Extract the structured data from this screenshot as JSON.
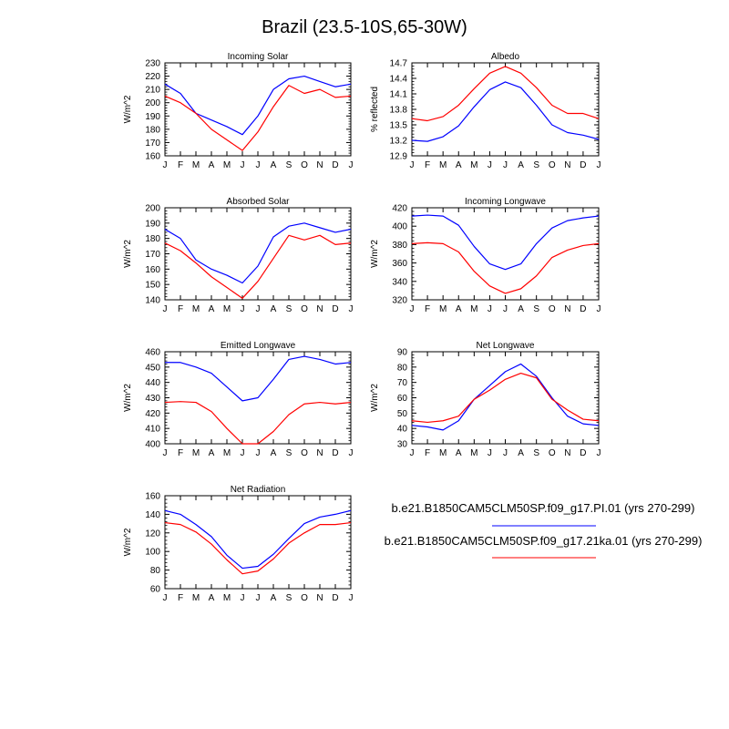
{
  "title": "Brazil (23.5-10S,65-30W)",
  "colors": {
    "series1": "#0000ff",
    "series2": "#ff0000",
    "axis": "#000000"
  },
  "legend": [
    {
      "label": "b.e21.B1850CAM5CLM50SP.f09_g17.PI.01 (yrs 270-299)",
      "color": "#0000ff"
    },
    {
      "label": "b.e21.B1850CAM5CLM50SP.f09_g17.21ka.01 (yrs 270-299)",
      "color": "#ff0000"
    }
  ],
  "chart_data": [
    {
      "type": "line",
      "title": "Incoming Solar",
      "ylabel": "W/m^2",
      "categories": [
        "J",
        "F",
        "M",
        "A",
        "M",
        "J",
        "J",
        "A",
        "S",
        "O",
        "N",
        "D",
        "J"
      ],
      "ylim": [
        160,
        230
      ],
      "yticks": [
        160,
        170,
        180,
        190,
        200,
        210,
        220,
        230
      ],
      "series": [
        {
          "color": "#0000ff",
          "values": [
            214,
            207,
            192,
            187,
            182,
            176,
            190,
            210,
            218,
            220,
            216,
            212,
            214
          ]
        },
        {
          "color": "#ff0000",
          "values": [
            205,
            200,
            192,
            180,
            172,
            164,
            178,
            197,
            213,
            207,
            210,
            204,
            205
          ]
        }
      ]
    },
    {
      "type": "line",
      "title": "Albedo",
      "ylabel": "% reflected",
      "categories": [
        "J",
        "F",
        "M",
        "A",
        "M",
        "J",
        "J",
        "A",
        "S",
        "O",
        "N",
        "D",
        "J"
      ],
      "ylim": [
        12.9,
        14.7
      ],
      "yticks": [
        "12.9",
        "13.2",
        "13.5",
        "13.8",
        "14.1",
        "14.4",
        "14.7"
      ],
      "series": [
        {
          "color": "#0000ff",
          "values": [
            13.2,
            13.18,
            13.27,
            13.48,
            13.85,
            14.18,
            14.33,
            14.22,
            13.88,
            13.5,
            13.35,
            13.3,
            13.22
          ]
        },
        {
          "color": "#ff0000",
          "values": [
            13.62,
            13.58,
            13.66,
            13.88,
            14.2,
            14.5,
            14.63,
            14.5,
            14.22,
            13.88,
            13.72,
            13.72,
            13.62
          ]
        }
      ]
    },
    {
      "type": "line",
      "title": "Absorbed Solar",
      "ylabel": "W/m^2",
      "categories": [
        "J",
        "F",
        "M",
        "A",
        "M",
        "J",
        "J",
        "A",
        "S",
        "O",
        "N",
        "D",
        "J"
      ],
      "ylim": [
        140,
        200
      ],
      "yticks": [
        140,
        150,
        160,
        170,
        180,
        190,
        200
      ],
      "series": [
        {
          "color": "#0000ff",
          "values": [
            186,
            180,
            166,
            160,
            156,
            151,
            162,
            181,
            188,
            190,
            187,
            184,
            186
          ]
        },
        {
          "color": "#ff0000",
          "values": [
            177,
            172,
            164,
            155,
            148,
            141,
            152,
            167,
            182,
            179,
            182,
            176,
            177
          ]
        }
      ]
    },
    {
      "type": "line",
      "title": "Incoming Longwave",
      "ylabel": "W/m^2",
      "categories": [
        "J",
        "F",
        "M",
        "A",
        "M",
        "J",
        "J",
        "A",
        "S",
        "O",
        "N",
        "D",
        "J"
      ],
      "ylim": [
        320,
        420
      ],
      "yticks": [
        320,
        340,
        360,
        380,
        400,
        420
      ],
      "series": [
        {
          "color": "#0000ff",
          "values": [
            411,
            412,
            411,
            401,
            378,
            359,
            353,
            359,
            381,
            398,
            406,
            409,
            411
          ]
        },
        {
          "color": "#ff0000",
          "values": [
            381,
            382,
            381,
            372,
            351,
            335,
            327,
            332,
            346,
            366,
            374,
            379,
            381
          ]
        }
      ]
    },
    {
      "type": "line",
      "title": "Emitted Longwave",
      "ylabel": "W/m^2",
      "categories": [
        "J",
        "F",
        "M",
        "A",
        "M",
        "J",
        "J",
        "A",
        "S",
        "O",
        "N",
        "D",
        "J"
      ],
      "ylim": [
        400,
        460
      ],
      "yticks": [
        400,
        410,
        420,
        430,
        440,
        450,
        460
      ],
      "series": [
        {
          "color": "#0000ff",
          "values": [
            453,
            453,
            450,
            446,
            437,
            428,
            430,
            442,
            455,
            457,
            455,
            452,
            453
          ]
        },
        {
          "color": "#ff0000",
          "values": [
            427,
            427.5,
            427,
            421,
            410,
            400,
            400,
            408,
            419,
            426,
            427,
            426,
            427
          ]
        }
      ]
    },
    {
      "type": "line",
      "title": "Net Longwave",
      "ylabel": "W/m^2",
      "categories": [
        "J",
        "F",
        "M",
        "A",
        "M",
        "J",
        "J",
        "A",
        "S",
        "O",
        "N",
        "D",
        "J"
      ],
      "ylim": [
        30,
        90
      ],
      "yticks": [
        30,
        40,
        50,
        60,
        70,
        80,
        90
      ],
      "series": [
        {
          "color": "#0000ff",
          "values": [
            42,
            41,
            39,
            45,
            59,
            68,
            77,
            82,
            74,
            60,
            48,
            43,
            42
          ]
        },
        {
          "color": "#ff0000",
          "values": [
            45,
            44,
            45,
            48,
            59,
            65,
            72,
            76,
            73,
            59,
            52,
            46,
            45
          ]
        }
      ]
    },
    {
      "type": "line",
      "title": "Net Radiation",
      "ylabel": "W/m^2",
      "categories": [
        "J",
        "F",
        "M",
        "A",
        "M",
        "J",
        "J",
        "A",
        "S",
        "O",
        "N",
        "D",
        "J"
      ],
      "ylim": [
        60,
        160
      ],
      "yticks": [
        60,
        80,
        100,
        120,
        140,
        160
      ],
      "series": [
        {
          "color": "#0000ff",
          "values": [
            144,
            140,
            129,
            116,
            96,
            82,
            84,
            97,
            114,
            130,
            137,
            140,
            144
          ]
        },
        {
          "color": "#ff0000",
          "values": [
            131,
            129,
            121,
            108,
            91,
            76,
            79,
            92,
            109,
            120,
            129,
            129,
            131
          ]
        }
      ]
    }
  ]
}
